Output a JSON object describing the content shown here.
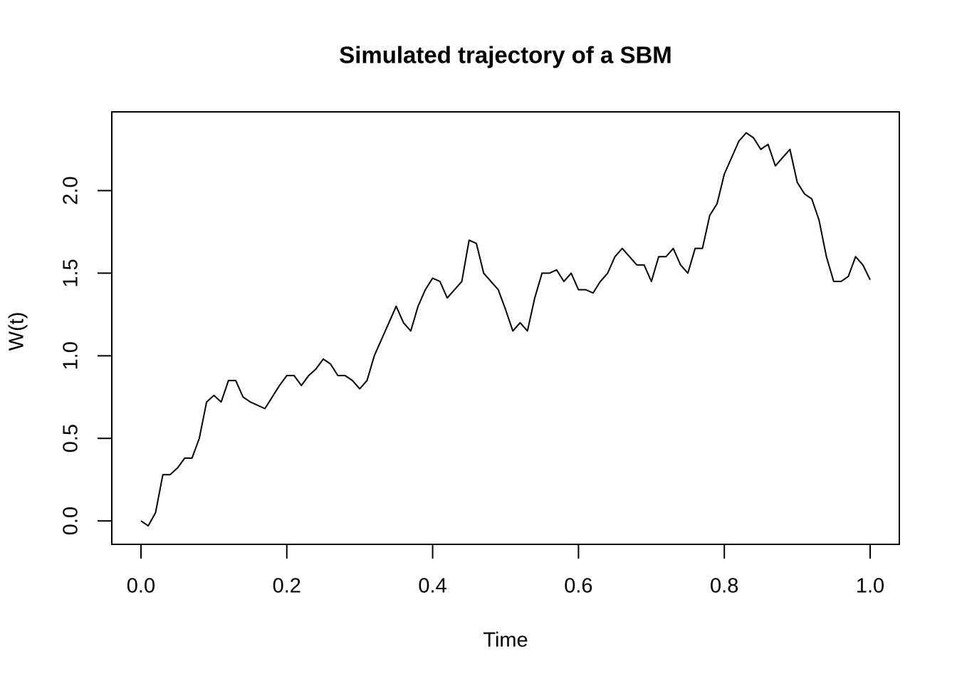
{
  "chart_data": {
    "type": "line",
    "title": "Simulated trajectory of a SBM",
    "x_label": "Time",
    "y_label": "W(t)",
    "x": [
      0,
      0.01,
      0.02,
      0.03,
      0.04,
      0.05,
      0.06,
      0.07,
      0.08,
      0.09,
      0.1,
      0.11,
      0.12,
      0.13,
      0.14,
      0.15,
      0.16,
      0.17,
      0.18,
      0.19,
      0.2,
      0.21,
      0.22,
      0.23,
      0.24,
      0.25,
      0.26,
      0.27,
      0.28,
      0.29,
      0.3,
      0.31,
      0.32,
      0.33,
      0.34,
      0.35,
      0.36,
      0.37,
      0.38,
      0.39,
      0.4,
      0.41,
      0.42,
      0.43,
      0.44,
      0.45,
      0.46,
      0.47,
      0.48,
      0.49,
      0.5,
      0.51,
      0.52,
      0.53,
      0.54,
      0.55,
      0.56,
      0.57,
      0.58,
      0.59,
      0.6,
      0.61,
      0.62,
      0.63,
      0.64,
      0.65,
      0.66,
      0.67,
      0.68,
      0.69,
      0.7,
      0.71,
      0.72,
      0.73,
      0.74,
      0.75,
      0.76,
      0.77,
      0.78,
      0.79,
      0.8,
      0.81,
      0.82,
      0.83,
      0.84,
      0.85,
      0.86,
      0.87,
      0.88,
      0.89,
      0.9,
      0.91,
      0.92,
      0.93,
      0.94,
      0.95,
      0.96,
      0.97,
      0.98,
      0.99,
      1
    ],
    "series": [
      {
        "color": "#000000",
        "values": [
          0,
          -0.03,
          0.05,
          0.28,
          0.28,
          0.32,
          0.38,
          0.38,
          0.5,
          0.72,
          0.76,
          0.72,
          0.85,
          0.85,
          0.75,
          0.72,
          0.7,
          0.68,
          0.75,
          0.82,
          0.88,
          0.88,
          0.82,
          0.88,
          0.92,
          0.98,
          0.95,
          0.88,
          0.88,
          0.85,
          0.8,
          0.85,
          1.0,
          1.1,
          1.2,
          1.3,
          1.2,
          1.15,
          1.3,
          1.4,
          1.47,
          1.45,
          1.35,
          1.4,
          1.45,
          1.7,
          1.68,
          1.5,
          1.45,
          1.4,
          1.28,
          1.15,
          1.2,
          1.15,
          1.35,
          1.5,
          1.5,
          1.52,
          1.45,
          1.5,
          1.4,
          1.4,
          1.38,
          1.45,
          1.5,
          1.6,
          1.65,
          1.6,
          1.55,
          1.55,
          1.45,
          1.6,
          1.6,
          1.65,
          1.55,
          1.5,
          1.65,
          1.65,
          1.85,
          1.92,
          2.1,
          2.2,
          2.3,
          2.35,
          2.32,
          2.25,
          2.28,
          2.15,
          2.2,
          2.25,
          2.05,
          1.98,
          1.95,
          1.82,
          1.6,
          1.45,
          1.45,
          1.48,
          1.6,
          1.55,
          1.46
        ]
      }
    ],
    "xlim": [
      -0.04,
      1.04
    ],
    "ylim": [
      -0.142,
      2.477
    ],
    "xticks": [
      {
        "value": 0,
        "label": "0.0"
      },
      0.2,
      0.4,
      0.6,
      0.8,
      {
        "value": 1,
        "label": "1.0"
      }
    ],
    "yticks": [
      {
        "value": 0,
        "label": "0.0"
      },
      0.5,
      {
        "value": 1,
        "label": "1.0"
      },
      1.5,
      {
        "value": 2,
        "label": "2.0"
      }
    ]
  }
}
